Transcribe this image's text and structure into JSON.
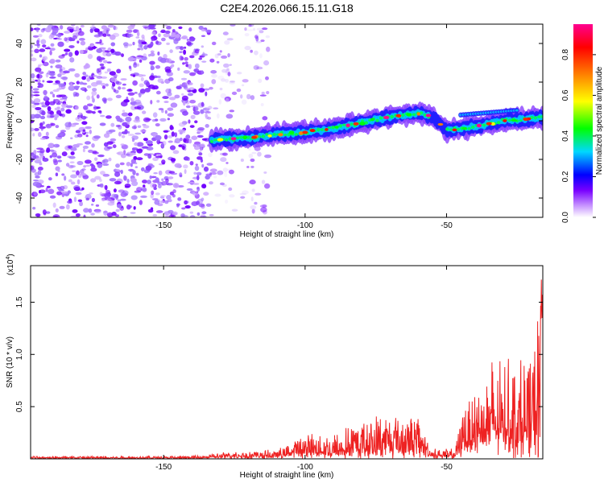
{
  "title": "C2E4.2026.066.15.11.G18",
  "chart_data": [
    {
      "type": "heatmap",
      "xlabel": "Height of straight line (km)",
      "ylabel": "Frequency (Hz)",
      "xlim": [
        -197,
        -16
      ],
      "ylim": [
        -50,
        50
      ],
      "xticks": [
        -150,
        -100,
        -50
      ],
      "yticks": [
        -40,
        -20,
        0,
        20,
        40
      ],
      "xtick_labels": [
        "-150",
        "-100",
        "-50"
      ],
      "ytick_labels": [
        "-40",
        "-20",
        "0",
        "20",
        "40"
      ],
      "track": [
        {
          "x": -133,
          "y": -10
        },
        {
          "x": -120,
          "y": -9
        },
        {
          "x": -110,
          "y": -7
        },
        {
          "x": -100,
          "y": -6
        },
        {
          "x": -90,
          "y": -4
        },
        {
          "x": -80,
          "y": -1
        },
        {
          "x": -70,
          "y": 2
        },
        {
          "x": -60,
          "y": 4
        },
        {
          "x": -55,
          "y": 2
        },
        {
          "x": -50,
          "y": -5
        },
        {
          "x": -40,
          "y": -3
        },
        {
          "x": -30,
          "y": 0
        },
        {
          "x": -20,
          "y": 1
        },
        {
          "x": -16,
          "y": 2
        }
      ],
      "colorbar": {
        "label": "Normalized spectral amplitude",
        "range": [
          0,
          0.95
        ],
        "ticks": [
          0.0,
          0.2,
          0.4,
          0.6,
          0.8
        ],
        "tick_labels": [
          "0.0",
          "0.2",
          "0.4",
          "0.6",
          "0.8"
        ],
        "colors": [
          "#ffffff",
          "#c896ff",
          "#7800ff",
          "#0000ff",
          "#00d8ff",
          "#00ff00",
          "#ffff00",
          "#ff8000",
          "#ff0000",
          "#ff0090"
        ]
      }
    },
    {
      "type": "line",
      "xlabel": "Height of straight line (km)",
      "ylabel": "SNR (10 * v/v)",
      "y_multiplier": "(x10",
      "y_multiplier_exp": "4",
      "xlim": [
        -197,
        -16
      ],
      "ylim": [
        0,
        1.85
      ],
      "xticks": [
        -150,
        -100,
        -50
      ],
      "yticks": [
        0.5,
        1.0,
        1.5
      ],
      "xtick_labels": [
        "-150",
        "-100",
        "-50"
      ],
      "ytick_labels": [
        "0.5",
        "1.0",
        "1.5"
      ],
      "color": "#ee2222",
      "envelope": [
        {
          "x": -197,
          "base": 0.01,
          "amp": 0.02
        },
        {
          "x": -140,
          "base": 0.01,
          "amp": 0.02
        },
        {
          "x": -125,
          "base": 0.03,
          "amp": 0.05
        },
        {
          "x": -110,
          "base": 0.03,
          "amp": 0.06
        },
        {
          "x": -100,
          "base": 0.07,
          "amp": 0.2
        },
        {
          "x": -90,
          "base": 0.06,
          "amp": 0.2
        },
        {
          "x": -80,
          "base": 0.1,
          "amp": 0.3
        },
        {
          "x": -70,
          "base": 0.12,
          "amp": 0.4
        },
        {
          "x": -60,
          "base": 0.12,
          "amp": 0.32
        },
        {
          "x": -55,
          "base": 0.03,
          "amp": 0.08
        },
        {
          "x": -47,
          "base": 0.04,
          "amp": 0.06
        },
        {
          "x": -44,
          "base": 0.2,
          "amp": 0.4
        },
        {
          "x": -35,
          "base": 0.3,
          "amp": 0.7
        },
        {
          "x": -25,
          "base": 0.3,
          "amp": 0.75
        },
        {
          "x": -20,
          "base": 0.2,
          "amp": 0.85
        },
        {
          "x": -16,
          "base": 0.4,
          "amp": 1.45
        }
      ]
    }
  ]
}
